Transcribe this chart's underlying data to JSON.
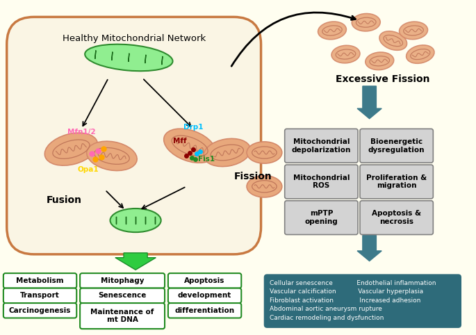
{
  "bg_color": "#FFFEF0",
  "cell_color": "#FAF5E4",
  "cell_border": "#C87941",
  "title": "Healthy Mitochondrial Network",
  "fusion_label": "Fusion",
  "fission_label": "Fission",
  "excessive_fission_label": "Excessive Fission",
  "mfn_label": "Mfn1/2",
  "mfn_color": "#FF69B4",
  "opa1_label": "Opa1",
  "opa1_color": "#FFD700",
  "drp1_label": "Drp1",
  "drp1_color": "#00BFFF",
  "mff_label": "Mff",
  "mff_color": "#8B0000",
  "fis1_label": "Fis1",
  "fis1_color": "#228B22",
  "gray_boxes": [
    [
      "Mitochondrial\ndepolarization",
      "Bioenergetic\ndysregulation"
    ],
    [
      "Mitochondrial\nROS",
      "Proliferation &\nmigration"
    ],
    [
      "mPTP\nopening",
      "Apoptosis &\nnecrosis"
    ]
  ],
  "gray_box_color": "#D3D3D3",
  "gray_box_border": "#808080",
  "teal_box_color": "#2E6B7A",
  "teal_text_color": "#FFFFFF",
  "teal_box_lines": [
    "Cellular senescence         Endothelial inflammation",
    "Vascular calcification        Vascular hyperplasia",
    "Fibroblast activation          Increased adhesion",
    "Abdominal aortic aneurysm rupture",
    "Cardiac remodeling and dysfunction"
  ],
  "green_boxes": [
    [
      "Metabolism",
      "Mitophagy",
      "Apoptosis"
    ],
    [
      "Transport",
      "Senescence",
      "development"
    ],
    [
      "Carcinogenesis",
      "Maintenance of\nmt DNA",
      "differentiation"
    ]
  ],
  "green_box_border": "#228B22",
  "arrow_color": "#4A7C59",
  "dark_teal_arrow": "#2E6B7A"
}
